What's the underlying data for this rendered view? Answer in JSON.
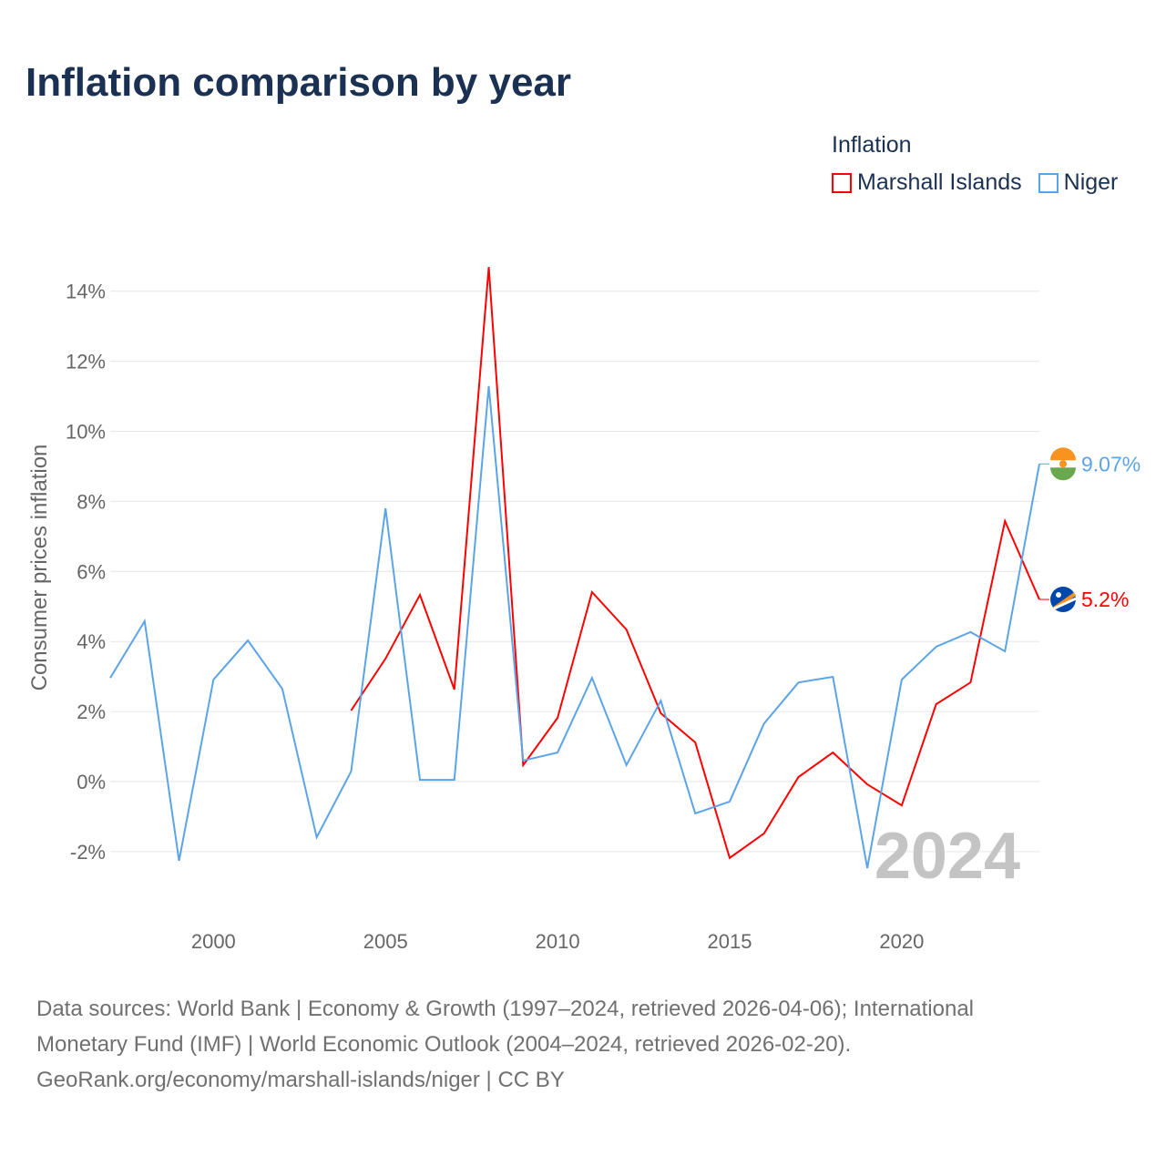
{
  "chart_data": {
    "type": "line",
    "title": "Inflation comparison by year",
    "ylabel": "Consumer prices inflation",
    "xlabel": "",
    "xlim": [
      1997,
      2024
    ],
    "ylim": [
      -3.75,
      15
    ],
    "x_ticks": [
      2000,
      2005,
      2010,
      2015,
      2020
    ],
    "y_ticks": [
      -2,
      0,
      2,
      4,
      6,
      8,
      10,
      12,
      14
    ],
    "y_tick_labels": [
      "-2%",
      "0%",
      "2%",
      "4%",
      "6%",
      "8%",
      "10%",
      "12%",
      "14%"
    ],
    "grid": true,
    "legend_title": "Inflation",
    "legend_position": "top-right",
    "watermark_year": "2024",
    "series": [
      {
        "name": "Marshall Islands",
        "color": "#ff0000",
        "end_label": "5.2%",
        "x": [
          2004,
          2005,
          2006,
          2007,
          2008,
          2009,
          2010,
          2011,
          2012,
          2013,
          2014,
          2015,
          2016,
          2017,
          2018,
          2019,
          2020,
          2021,
          2022,
          2023,
          2024
        ],
        "values": [
          2.03,
          3.51,
          5.33,
          2.63,
          14.69,
          0.47,
          1.82,
          5.41,
          4.34,
          1.95,
          1.12,
          -2.18,
          -1.48,
          0.13,
          0.83,
          -0.08,
          -0.68,
          2.21,
          2.83,
          7.44,
          5.2
        ]
      },
      {
        "name": "Niger",
        "color": "#5ba4e8",
        "end_label": "9.07%",
        "x": [
          1997,
          1998,
          1999,
          2000,
          2001,
          2002,
          2003,
          2004,
          2005,
          2006,
          2007,
          2008,
          2009,
          2010,
          2011,
          2012,
          2013,
          2014,
          2015,
          2016,
          2017,
          2018,
          2019,
          2020,
          2021,
          2022,
          2023,
          2024
        ],
        "values": [
          2.96,
          4.58,
          -2.26,
          2.91,
          4.03,
          2.65,
          -1.59,
          0.29,
          7.8,
          0.05,
          0.05,
          11.29,
          0.6,
          0.83,
          2.96,
          0.47,
          2.31,
          -0.91,
          -0.57,
          1.66,
          2.83,
          2.99,
          -2.47,
          2.91,
          3.85,
          4.27,
          3.72,
          9.07
        ]
      }
    ]
  },
  "footer": {
    "line1": "Data sources: World Bank | Economy & Growth (1997–2024, retrieved 2026-04-06); International",
    "line2": "Monetary Fund (IMF) | World Economic Outlook (2004–2024, retrieved 2026-02-20).",
    "line3": "GeoRank.org/economy/marshall-islands/niger | CC BY"
  }
}
